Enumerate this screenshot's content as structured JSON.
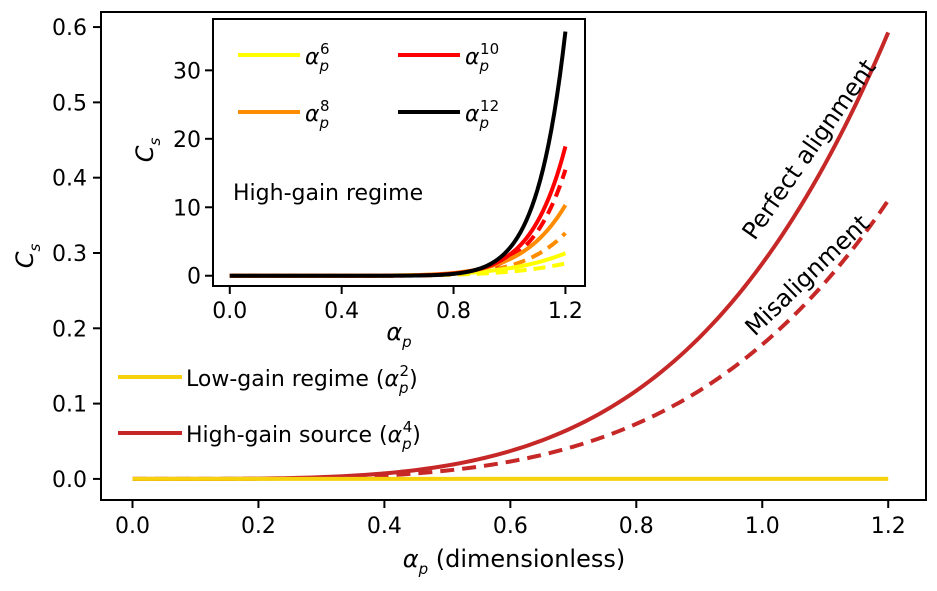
{
  "chart_data": [
    {
      "type": "line",
      "xlabel": {
        "symbol": "α",
        "sub": "p",
        "suffix": " (dimensionless)"
      },
      "ylabel": {
        "symbol": "C",
        "sub": "s"
      },
      "xlim": [
        -0.05,
        1.26
      ],
      "ylim": [
        -0.028,
        0.62
      ],
      "xticks": [
        0.0,
        0.2,
        0.4,
        0.6,
        0.8,
        1.0,
        1.2
      ],
      "xtick_labels": [
        "0.0",
        "0.2",
        "0.4",
        "0.6",
        "0.8",
        "1.0",
        "1.2"
      ],
      "yticks": [
        0.0,
        0.1,
        0.2,
        0.3,
        0.4,
        0.5,
        0.6
      ],
      "ytick_labels": [
        "0.0",
        "0.1",
        "0.2",
        "0.3",
        "0.4",
        "0.5",
        "0.6"
      ],
      "grid": false,
      "legend_position": "lower-left",
      "series": [
        {
          "name": "Low-gain regime",
          "label_prefix": "Low-gain regime (",
          "power": 2,
          "color": "#f5d20c",
          "style": "solid",
          "coefficient": 0.0,
          "x": [
            0,
            0.2,
            0.4,
            0.6,
            0.8,
            1.0,
            1.2
          ],
          "values": [
            0,
            0,
            0,
            0,
            0,
            0,
            0
          ]
        },
        {
          "name": "High-gain source (Perfect alignment)",
          "label_prefix": "High-gain source (",
          "power": 4,
          "color": "#c62828",
          "style": "solid",
          "coefficient": 0.2859,
          "x": [
            0,
            0.2,
            0.4,
            0.6,
            0.8,
            1.0,
            1.2
          ],
          "values": [
            0,
            0.0005,
            0.0073,
            0.037,
            0.117,
            0.286,
            0.593
          ]
        },
        {
          "name": "High-gain source (Misalignment)",
          "power": 4,
          "color": "#c62828",
          "style": "dashed",
          "coefficient": 0.1784,
          "x": [
            0,
            0.2,
            0.4,
            0.6,
            0.8,
            1.0,
            1.2
          ],
          "values": [
            0,
            0.0003,
            0.0046,
            0.023,
            0.073,
            0.178,
            0.37
          ]
        }
      ],
      "annotations": [
        {
          "text": "Perfect alignment",
          "x": 1.07,
          "y": 0.39,
          "rotation_deg": -55
        },
        {
          "text": "Misalignment",
          "x": 1.07,
          "y": 0.235,
          "rotation_deg": -44
        }
      ]
    },
    {
      "type": "line",
      "title": "High-gain regime",
      "xlabel": {
        "symbol": "α",
        "sub": "p"
      },
      "ylabel": {
        "symbol": "C",
        "sub": "s"
      },
      "xlim": [
        -0.06,
        1.27
      ],
      "ylim": [
        -1.5,
        37.5
      ],
      "xticks": [
        0.0,
        0.4,
        0.8,
        1.2
      ],
      "xtick_labels": [
        "0.0",
        "0.4",
        "0.8",
        "1.2"
      ],
      "yticks": [
        0,
        10,
        20,
        30
      ],
      "ytick_labels": [
        "0",
        "10",
        "20",
        "30"
      ],
      "grid": false,
      "legend_position": "top",
      "series": [
        {
          "name": "α_p^6",
          "power": 6,
          "color": "#ffff00",
          "coefficient": 1.1,
          "dashed_coefficient": 0.6,
          "values_at_1.2": {
            "solid": 3.3,
            "dashed": 1.8
          }
        },
        {
          "name": "α_p^8",
          "power": 8,
          "color": "#ff8c00",
          "coefficient": 2.4,
          "dashed_coefficient": 1.45,
          "values_at_1.2": {
            "solid": 10.3,
            "dashed": 6.2
          }
        },
        {
          "name": "α_p^10",
          "power": 10,
          "color": "#ff0000",
          "coefficient": 3.05,
          "dashed_coefficient": 2.5,
          "values_at_1.2": {
            "solid": 18.9,
            "dashed": 15.5
          }
        },
        {
          "name": "α_p^12",
          "power": 12,
          "color": "#000000",
          "coefficient": 4.0,
          "values_at_1.2": {
            "solid": 35.7
          }
        }
      ]
    }
  ]
}
